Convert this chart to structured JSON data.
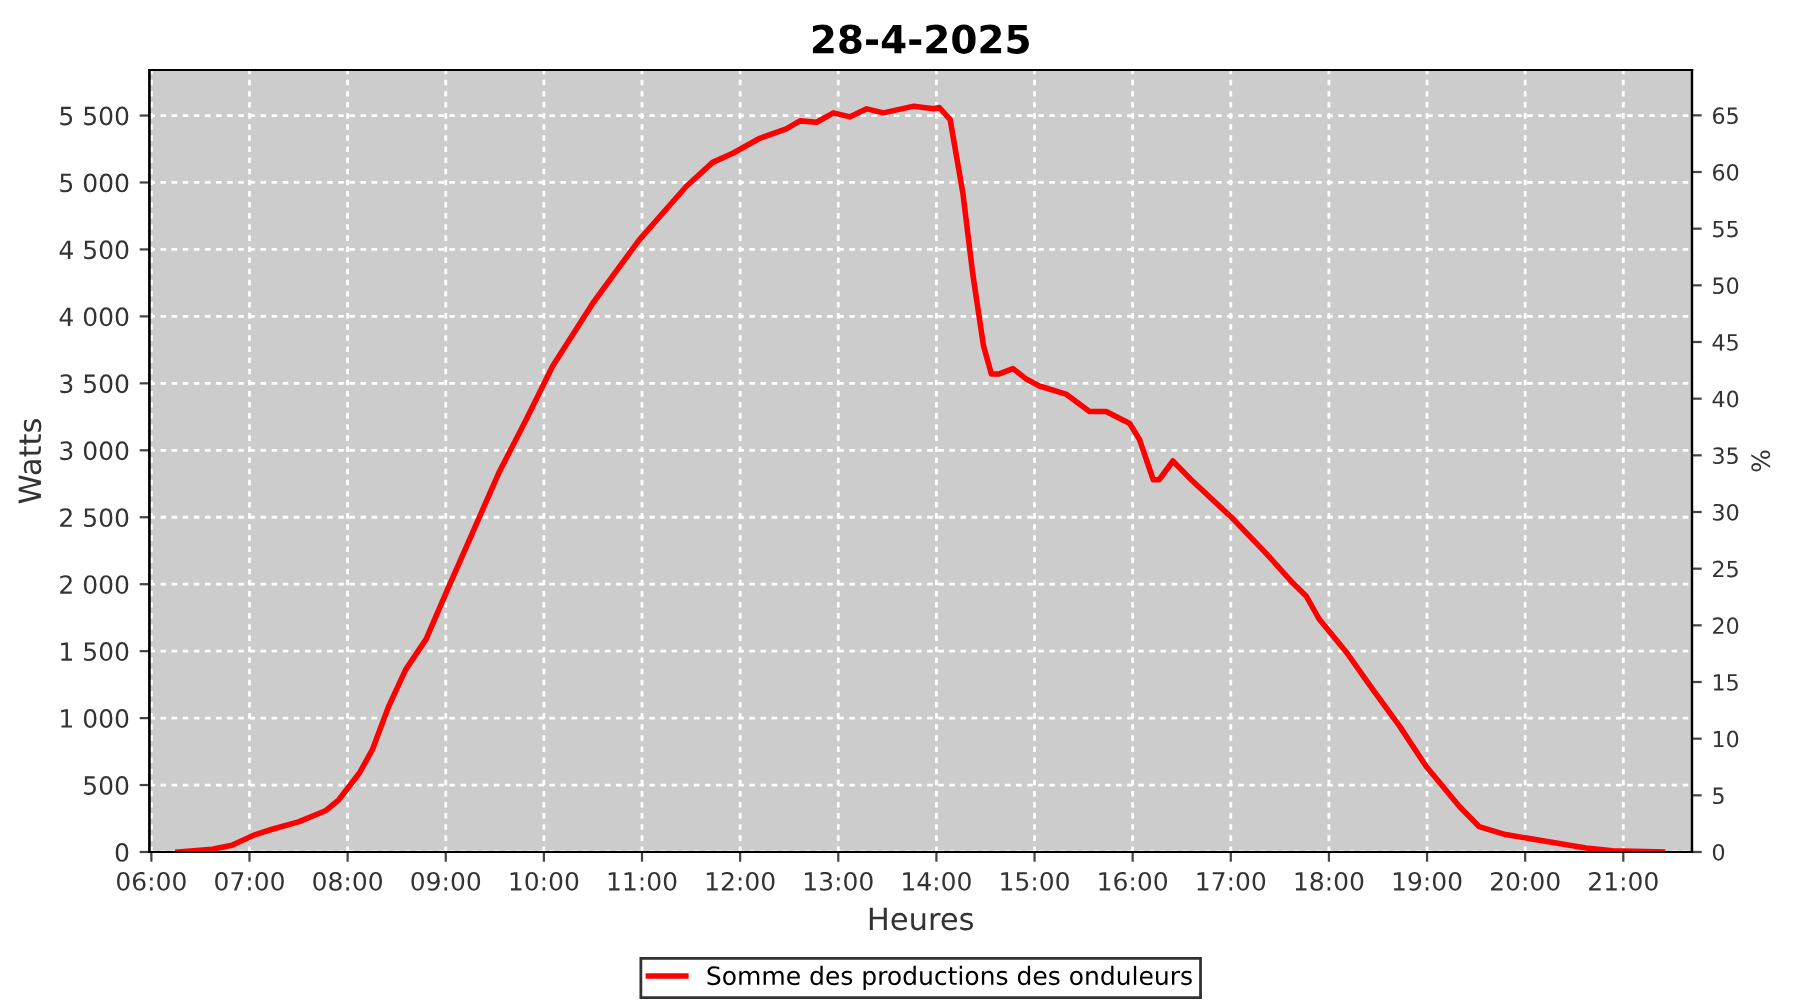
{
  "chart_data": {
    "type": "line",
    "title": "28-4-2025",
    "xlabel": "Heures",
    "ylabel": "Watts",
    "y2label": "%",
    "xlim": [
      5.98,
      21.7
    ],
    "ylim": [
      0,
      5840
    ],
    "y2lim": [
      0,
      69
    ],
    "xticks": [
      {
        "value": 6,
        "label": "06:00"
      },
      {
        "value": 7,
        "label": "07:00"
      },
      {
        "value": 8,
        "label": "08:00"
      },
      {
        "value": 9,
        "label": "09:00"
      },
      {
        "value": 10,
        "label": "10:00"
      },
      {
        "value": 11,
        "label": "11:00"
      },
      {
        "value": 12,
        "label": "12:00"
      },
      {
        "value": 13,
        "label": "13:00"
      },
      {
        "value": 14,
        "label": "14:00"
      },
      {
        "value": 15,
        "label": "15:00"
      },
      {
        "value": 16,
        "label": "16:00"
      },
      {
        "value": 17,
        "label": "17:00"
      },
      {
        "value": 18,
        "label": "18:00"
      },
      {
        "value": 19,
        "label": "19:00"
      },
      {
        "value": 20,
        "label": "20:00"
      },
      {
        "value": 21,
        "label": "21:00"
      }
    ],
    "yticks": [
      0,
      500,
      {
        "value": 1000,
        "label": "1 000"
      },
      {
        "value": 1500,
        "label": "1 500"
      },
      {
        "value": 2000,
        "label": "2 000"
      },
      {
        "value": 2500,
        "label": "2 500"
      },
      {
        "value": 3000,
        "label": "3 000"
      },
      {
        "value": 3500,
        "label": "3 500"
      },
      {
        "value": 4000,
        "label": "4 000"
      },
      {
        "value": 4500,
        "label": "4 500"
      },
      {
        "value": 5000,
        "label": "5 000"
      },
      {
        "value": 5500,
        "label": "5 500"
      }
    ],
    "y2ticks": [
      0,
      5,
      10,
      15,
      20,
      25,
      30,
      35,
      40,
      45,
      50,
      55,
      60,
      65
    ],
    "grid": true,
    "legend": "bottom",
    "line_style": "solid",
    "marker": "none",
    "series": [
      {
        "name": "Somme des productions des onduleurs",
        "color": "#ff0000",
        "x": [
          6.27,
          6.62,
          6.82,
          7.06,
          7.23,
          7.5,
          7.78,
          7.91,
          8.12,
          8.25,
          8.42,
          8.59,
          8.8,
          9.0,
          9.27,
          9.54,
          9.82,
          10.09,
          10.5,
          10.97,
          11.45,
          11.72,
          11.93,
          12.2,
          12.47,
          12.61,
          12.78,
          12.95,
          13.12,
          13.29,
          13.46,
          13.77,
          13.97,
          14.03,
          14.14,
          14.27,
          14.37,
          14.48,
          14.56,
          14.64,
          14.78,
          14.92,
          15.05,
          15.32,
          15.56,
          15.73,
          15.97,
          16.07,
          16.21,
          16.27,
          16.41,
          16.61,
          17.02,
          17.36,
          17.63,
          17.77,
          17.9,
          18.18,
          18.45,
          18.72,
          18.99,
          19.33,
          19.53,
          19.8,
          20.21,
          20.62,
          20.89,
          21.4
        ],
        "values": [
          0,
          20,
          50,
          130,
          170,
          225,
          310,
          390,
          590,
          760,
          1090,
          1360,
          1590,
          1930,
          2380,
          2830,
          3230,
          3630,
          4100,
          4570,
          4970,
          5150,
          5220,
          5330,
          5400,
          5460,
          5450,
          5520,
          5490,
          5550,
          5520,
          5570,
          5550,
          5560,
          5470,
          4920,
          4320,
          3780,
          3570,
          3570,
          3610,
          3530,
          3480,
          3420,
          3290,
          3290,
          3200,
          3080,
          2780,
          2780,
          2920,
          2770,
          2490,
          2230,
          2010,
          1910,
          1740,
          1490,
          1210,
          940,
          640,
          340,
          190,
          130,
          80,
          30,
          10,
          0
        ]
      }
    ]
  }
}
